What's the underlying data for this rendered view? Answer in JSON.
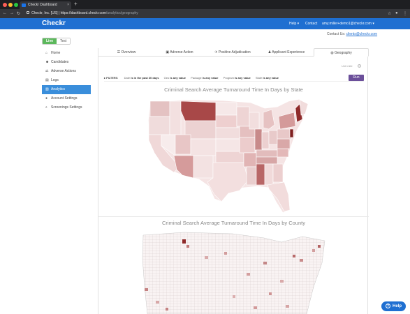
{
  "browser": {
    "tab_title": "Checkr Dashboard",
    "tab_close": "×",
    "new_tab": "+",
    "url_host": "Checkr, Inc. [US]",
    "url_full": "https://dashboard.checkr.com",
    "url_path": "/analytics/geography",
    "back": "←",
    "forward": "→",
    "reload": "↻"
  },
  "header": {
    "brand": "Checkr",
    "help": "Help ▾",
    "contact": "Contact",
    "account": "amy.miller+demo1@checkr.com ▾",
    "contact_us_label": "Contact Us:",
    "contact_us_email": "clients@checkr.com"
  },
  "env_toggle": {
    "live": "Live",
    "test": "Test"
  },
  "sidebar": {
    "items": [
      {
        "label": "Home",
        "icon": "home-icon",
        "glyph": "⌂"
      },
      {
        "label": "Candidates",
        "icon": "users-icon",
        "glyph": "☻"
      },
      {
        "label": "Adverse Actions",
        "icon": "gavel-icon",
        "glyph": "⚖"
      },
      {
        "label": "Logs",
        "icon": "logs-icon",
        "glyph": "▤"
      },
      {
        "label": "Analytics",
        "icon": "chart-icon",
        "glyph": "▥"
      },
      {
        "label": "Account Settings",
        "icon": "user-icon",
        "glyph": "●"
      },
      {
        "label": "Screenings Settings",
        "icon": "search-icon",
        "glyph": "⌕"
      }
    ],
    "active_index": 4
  },
  "tabs": [
    {
      "label": "☰ Overview"
    },
    {
      "label": "▣ Adverse Action"
    },
    {
      "label": "✈ Positive Adjudication"
    },
    {
      "label": "♟ Applicant Experience"
    },
    {
      "label": "◍ Geography"
    }
  ],
  "active_tab": 4,
  "units_label": "Unit mile",
  "filters": {
    "label": "▸ FILTERS",
    "date_label": "Date",
    "date_value": "is in the past 30 days",
    "geo_label": "Geo",
    "geo_value": "is any value",
    "package_label": "Package",
    "package_value": "is any value",
    "program_label": "Program",
    "program_value": "is any value",
    "state_label": "State",
    "state_value": "is any value",
    "run": "Run"
  },
  "charts": {
    "state_title": "Criminal Search Average Turnaround Time In Days by State",
    "county_title": "Criminal Search Average Turnaround Time In Days by County"
  },
  "help_widget": {
    "glyph": "?",
    "label": "Help"
  },
  "colors": {
    "brand_blue": "#1f6fd1",
    "live_green": "#5cb85c",
    "run_purple": "#6b4f9a",
    "map_low": "#f7eeee",
    "map_high": "#8e2a2a"
  }
}
